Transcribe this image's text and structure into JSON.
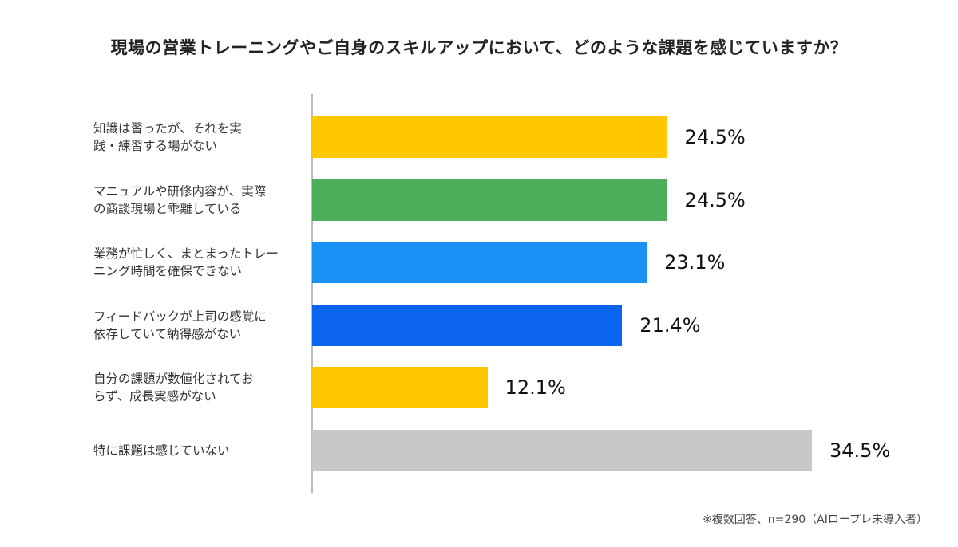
{
  "chart_data": {
    "type": "bar",
    "orientation": "horizontal",
    "title": "現場の営業トレーニングやご自身のスキルアップにおいて、どのような課題を感じていますか？",
    "categories": [
      [
        "知識は習ったが、それを実",
        "践・練習する場がない"
      ],
      [
        "マニュアルや研修内容が、実際",
        "の商談現場と乖離している"
      ],
      [
        "業務が忙しく、まとまったトレー",
        "ニング時間を確保できない"
      ],
      [
        "フィードバックが上司の感覚に",
        "依存していて納得感がない"
      ],
      [
        "自分の課題が数値化されてお",
        "らず、成長実感がない"
      ],
      [
        "特に課題は感じていない"
      ]
    ],
    "values": [
      24.5,
      24.5,
      23.1,
      21.4,
      12.1,
      34.5
    ],
    "value_labels": [
      "24.5%",
      "24.5%",
      "23.1%",
      "21.4%",
      "12.1%",
      "34.5%"
    ],
    "colors": [
      "#FFC700",
      "#4AAE5B",
      "#1A91F4",
      "#0A64EE",
      "#FFC700",
      "#C8C8C8"
    ],
    "xlim": [
      0,
      34.5
    ],
    "grid": false,
    "note": "※複数回答、n=290（AIロープレ未導入者）"
  }
}
